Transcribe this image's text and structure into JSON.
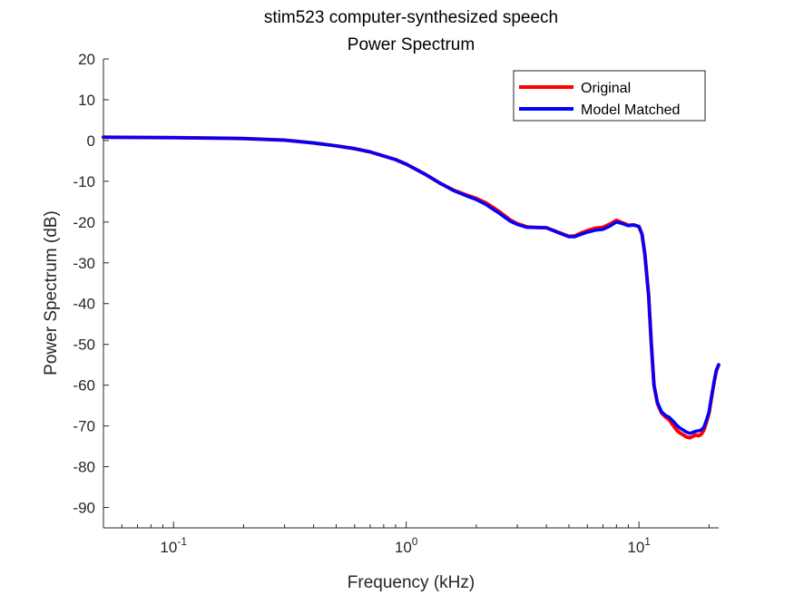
{
  "chart_data": {
    "type": "line",
    "title": [
      "stim523 computer-synthesized speech",
      "Power Spectrum"
    ],
    "xlabel": "Frequency (kHz)",
    "ylabel": "Power Spectrum (dB)",
    "x_scale": "log",
    "xlim": [
      0.05,
      22
    ],
    "ylim": [
      -95,
      20
    ],
    "x_ticks": [
      {
        "value": 0.1,
        "base": "10",
        "exp": "-1"
      },
      {
        "value": 1,
        "base": "10",
        "exp": "0"
      },
      {
        "value": 10,
        "base": "10",
        "exp": "1"
      }
    ],
    "y_ticks": [
      20,
      10,
      0,
      -10,
      -20,
      -30,
      -40,
      -50,
      -60,
      -70,
      -80,
      -90
    ],
    "grid": false,
    "legend_position": "top-right",
    "series": [
      {
        "name": "Original",
        "color": "#ff0000",
        "x": [
          0.05,
          0.1,
          0.2,
          0.3,
          0.4,
          0.5,
          0.6,
          0.7,
          0.8,
          0.9,
          1.0,
          1.2,
          1.4,
          1.6,
          1.8,
          2.0,
          2.2,
          2.5,
          2.8,
          3.0,
          3.3,
          3.6,
          4.0,
          4.5,
          5.0,
          5.3,
          5.7,
          6.0,
          6.5,
          7.0,
          7.5,
          8.0,
          8.5,
          9.0,
          9.5,
          10.0,
          10.3,
          10.6,
          11.0,
          11.3,
          11.6,
          12.0,
          12.5,
          13.0,
          13.5,
          14.0,
          14.5,
          15.0,
          15.5,
          16.0,
          16.5,
          17.0,
          17.5,
          18.0,
          18.5,
          19.0,
          19.5,
          20.0,
          20.5,
          21.0,
          21.5,
          22.0
        ],
        "y": [
          0.8,
          0.7,
          0.5,
          0.1,
          -0.6,
          -1.3,
          -2.0,
          -2.8,
          -3.8,
          -4.7,
          -5.8,
          -8.2,
          -10.5,
          -12.2,
          -13.3,
          -14.2,
          -15.3,
          -17.4,
          -19.5,
          -20.4,
          -21.2,
          -21.3,
          -21.4,
          -22.5,
          -23.5,
          -23.4,
          -22.6,
          -22.1,
          -21.5,
          -21.3,
          -20.5,
          -19.6,
          -20.2,
          -20.8,
          -20.7,
          -21.1,
          -23.0,
          -28.0,
          -38.0,
          -50.0,
          -60.0,
          -64.5,
          -66.8,
          -67.8,
          -68.5,
          -69.8,
          -71.0,
          -71.7,
          -72.2,
          -72.7,
          -72.9,
          -72.6,
          -72.2,
          -72.4,
          -72.1,
          -71.0,
          -69.0,
          -66.8,
          -63.0,
          -59.5,
          -56.5,
          -55.0
        ]
      },
      {
        "name": "Model Matched",
        "color": "#0000ff",
        "x": [
          0.05,
          0.1,
          0.2,
          0.3,
          0.4,
          0.5,
          0.6,
          0.7,
          0.8,
          0.9,
          1.0,
          1.2,
          1.4,
          1.6,
          1.8,
          2.0,
          2.2,
          2.5,
          2.8,
          3.0,
          3.3,
          3.6,
          4.0,
          4.5,
          5.0,
          5.3,
          5.7,
          6.0,
          6.5,
          7.0,
          7.5,
          8.0,
          8.5,
          9.0,
          9.5,
          10.0,
          10.3,
          10.6,
          11.0,
          11.3,
          11.6,
          12.0,
          12.5,
          13.0,
          13.5,
          14.0,
          14.5,
          15.0,
          15.5,
          16.0,
          16.5,
          17.0,
          17.5,
          18.0,
          18.5,
          19.0,
          19.5,
          20.0,
          20.5,
          21.0,
          21.5,
          22.0
        ],
        "y": [
          0.8,
          0.7,
          0.5,
          0.1,
          -0.6,
          -1.3,
          -2.0,
          -2.8,
          -3.8,
          -4.7,
          -5.8,
          -8.2,
          -10.5,
          -12.3,
          -13.5,
          -14.5,
          -15.7,
          -17.8,
          -19.8,
          -20.6,
          -21.3,
          -21.3,
          -21.4,
          -22.6,
          -23.6,
          -23.6,
          -22.9,
          -22.5,
          -22.0,
          -21.8,
          -21.0,
          -20.0,
          -20.4,
          -20.9,
          -20.7,
          -21.1,
          -23.0,
          -28.0,
          -38.0,
          -50.0,
          -60.0,
          -64.2,
          -66.5,
          -67.4,
          -67.9,
          -68.8,
          -69.8,
          -70.5,
          -71.0,
          -71.5,
          -71.8,
          -71.6,
          -71.3,
          -71.2,
          -71.0,
          -70.3,
          -68.5,
          -66.5,
          -62.8,
          -59.3,
          -56.3,
          -55.0
        ]
      }
    ]
  }
}
